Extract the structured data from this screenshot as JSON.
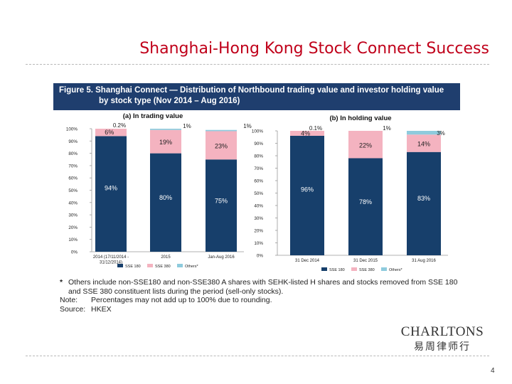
{
  "slide": {
    "title": "Shanghai-Hong Kong Stock Connect Success",
    "page_number": "4"
  },
  "figure": {
    "title_line1": "Figure 5.   Shanghai Connect — Distribution of Northbound trading value and investor holding value",
    "title_line2": "by stock type (Nov 2014 – Aug 2016)"
  },
  "colors": {
    "sse180": "#173f6b",
    "sse380": "#f4b3c0",
    "others": "#8ecbdd",
    "header": "#1f3e6e",
    "title": "#c0001a"
  },
  "chart_data": [
    {
      "type": "bar",
      "stacked": true,
      "title": "(a) In trading value",
      "categories": [
        "2014 (17/11/2014 - 31/12/2014)",
        "2015",
        "Jan-Aug 2016"
      ],
      "category_lines": [
        [
          "2014 (17/11/2014 -",
          "31/12/2014)"
        ],
        [
          "2015"
        ],
        [
          "Jan-Aug 2016"
        ]
      ],
      "series": [
        {
          "name": "SSE 180",
          "values": [
            94,
            80,
            75
          ],
          "labels": [
            "94%",
            "80%",
            "75%"
          ]
        },
        {
          "name": "SSE 380",
          "values": [
            6,
            19,
            23
          ],
          "labels": [
            "6%",
            "19%",
            "23%"
          ]
        },
        {
          "name": "Others*",
          "values": [
            0.2,
            1,
            1
          ],
          "labels": [
            "0.2%",
            "1%",
            "1%"
          ]
        }
      ],
      "ylim": [
        0,
        100
      ],
      "yticks": [
        "0%",
        "10%",
        "20%",
        "30%",
        "40%",
        "50%",
        "60%",
        "70%",
        "80%",
        "90%",
        "100%"
      ],
      "legend": [
        "SSE 180",
        "SSE 380",
        "Others*"
      ]
    },
    {
      "type": "bar",
      "stacked": true,
      "title": "(b) In holding value",
      "categories": [
        "31 Dec 2014",
        "31 Dec 2015",
        "31 Aug 2016"
      ],
      "category_lines": [
        [
          "31 Dec 2014"
        ],
        [
          "31 Dec 2015"
        ],
        [
          "31 Aug 2016"
        ]
      ],
      "series": [
        {
          "name": "SSE 180",
          "values": [
            96,
            78,
            83
          ],
          "labels": [
            "96%",
            "78%",
            "83%"
          ]
        },
        {
          "name": "SSE 380",
          "values": [
            4,
            22,
            14
          ],
          "labels": [
            "4%",
            "22%",
            "14%"
          ]
        },
        {
          "name": "Others*",
          "values": [
            0.1,
            1,
            3
          ],
          "labels": [
            "0.1%",
            "1%",
            "3%"
          ]
        }
      ],
      "ylim": [
        0,
        100
      ],
      "yticks": [
        "0%",
        "10%",
        "20%",
        "30%",
        "40%",
        "50%",
        "60%",
        "70%",
        "80%",
        "90%",
        "100%"
      ],
      "legend": [
        "SSE 180",
        "SSE 380",
        "Others*"
      ]
    }
  ],
  "notes": {
    "footnote_marker": "*",
    "footnote_line1": "Others include non-SSE180 and non-SSE380 A shares with SEHK-listed H shares and stocks removed from SSE 180",
    "footnote_line2": "and SSE 380 constituent lists during the period (sell-only stocks).",
    "note_label": "Note:",
    "note_text": "Percentages may not add up to 100% due to rounding.",
    "source_label": "Source:",
    "source_text": "HKEX"
  },
  "logo": {
    "name": "CHARLTONS",
    "chinese": "易周律师行"
  }
}
